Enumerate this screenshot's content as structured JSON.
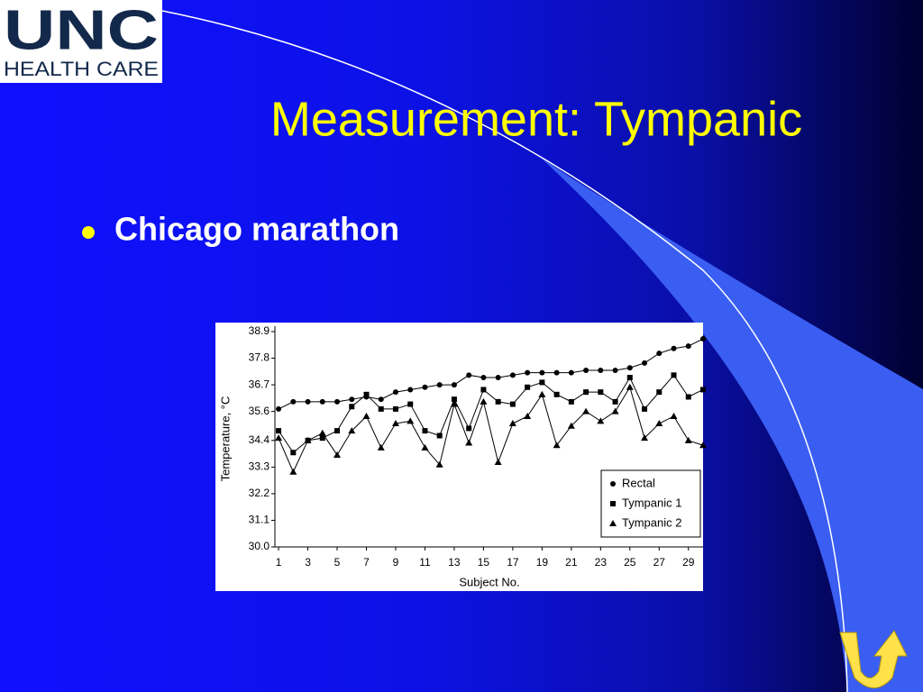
{
  "logo": {
    "line1": "UNC",
    "line2": "HEALTH CARE"
  },
  "title": "Measurement: Tympanic",
  "bullets": [
    "Chicago marathon"
  ],
  "chart_data": {
    "type": "line",
    "ylabel": "Temperature, °C",
    "xlabel": "Subject No.",
    "x": [
      1,
      2,
      3,
      4,
      5,
      6,
      7,
      8,
      9,
      10,
      11,
      12,
      13,
      14,
      15,
      16,
      17,
      18,
      19,
      20,
      21,
      22,
      23,
      24,
      25,
      26,
      27,
      28,
      29,
      30
    ],
    "xlim": [
      0.75,
      30
    ],
    "xticks": [
      1,
      3,
      5,
      7,
      9,
      11,
      13,
      15,
      17,
      19,
      21,
      23,
      25,
      27,
      29
    ],
    "ylim": [
      30,
      38.9
    ],
    "yticks": [
      {
        "value": 30,
        "label": "30.0"
      },
      31.1,
      32.2,
      33.3,
      34.4,
      35.6,
      36.7,
      37.8,
      38.9
    ],
    "legend": "lower right",
    "series": [
      {
        "name": "Rectal",
        "color": "#000000",
        "marker": "circle",
        "values": [
          35.7,
          36.0,
          36.0,
          36.0,
          36.0,
          36.1,
          36.2,
          36.1,
          36.4,
          36.5,
          36.6,
          36.7,
          36.7,
          37.1,
          37.0,
          37.0,
          37.1,
          37.2,
          37.2,
          37.2,
          37.2,
          37.3,
          37.3,
          37.3,
          37.4,
          37.6,
          38.0,
          38.2,
          38.3,
          38.6
        ]
      },
      {
        "name": "Tympanic 1",
        "color": "#000000",
        "marker": "square",
        "values": [
          34.8,
          33.9,
          34.4,
          34.5,
          34.8,
          35.8,
          36.3,
          35.7,
          35.7,
          35.9,
          34.8,
          34.6,
          36.1,
          34.9,
          36.5,
          36.0,
          35.9,
          36.6,
          36.8,
          36.3,
          36.0,
          36.4,
          36.4,
          36.0,
          37.0,
          35.7,
          36.4,
          37.1,
          36.2,
          36.5
        ]
      },
      {
        "name": "Tympanic 2",
        "color": "#000000",
        "marker": "triangle",
        "values": [
          34.5,
          33.1,
          34.4,
          34.7,
          33.8,
          34.8,
          35.4,
          34.1,
          35.1,
          35.2,
          34.1,
          33.4,
          35.9,
          34.3,
          36.0,
          33.5,
          35.1,
          35.4,
          36.3,
          34.2,
          35.0,
          35.6,
          35.2,
          35.6,
          36.6,
          34.5,
          35.1,
          35.4,
          34.4,
          34.2
        ]
      }
    ]
  }
}
